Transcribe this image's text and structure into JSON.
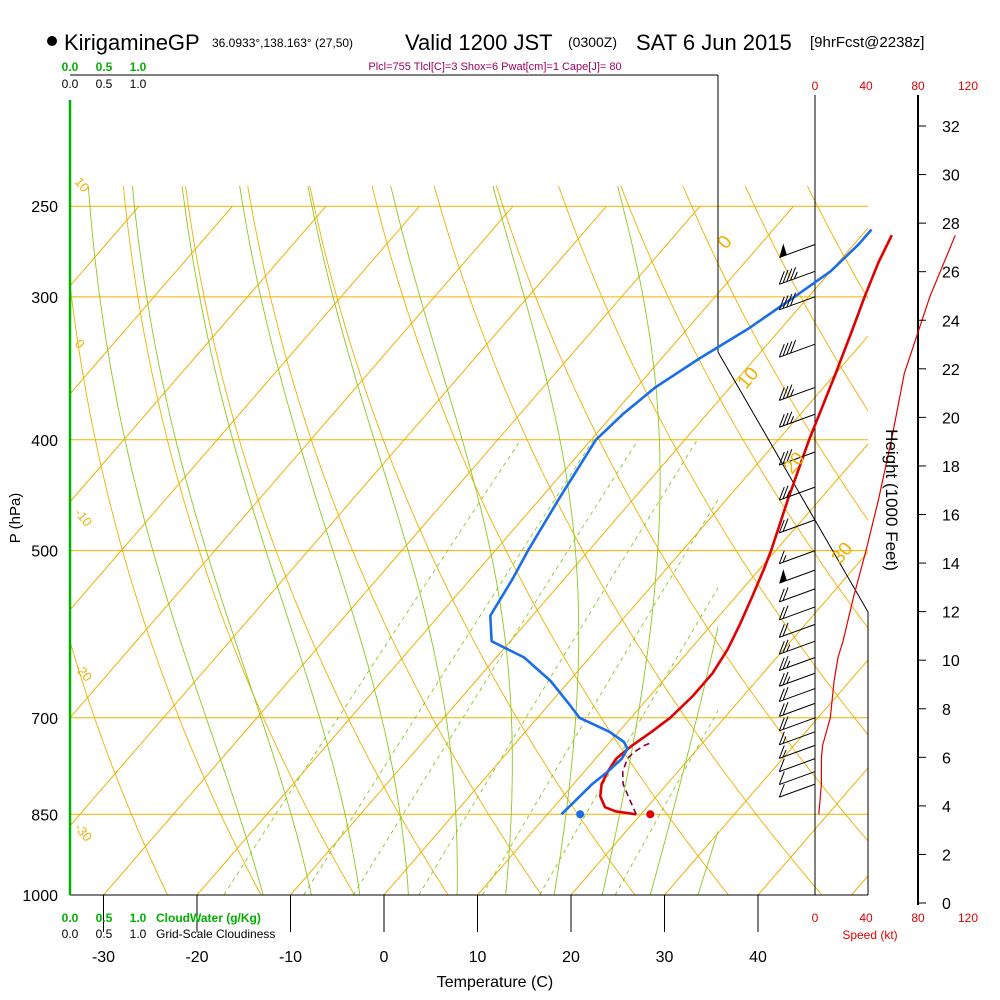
{
  "header": {
    "station": "KirigamineGP",
    "coords": "36.0933°,138.163° (27,50)",
    "valid": "Valid 1200 JST",
    "utc": "(0300Z)",
    "date": "SAT 6 Jun 2015",
    "forecast": "[9hrFcst@2238z]",
    "indices": "Plcl=755 Tlcl[C]=3 Shox=6 Pwat[cm]=1 Cape[J]= 80"
  },
  "colors": {
    "temperature": "#e00000",
    "dewpoint": "#1a6ee8",
    "parcel": "#800040",
    "isobar": "#f0b000",
    "dry_adiabat": "#f0b000",
    "moist_adiabat": "#8cc820",
    "mixing_ratio": "#8cc820",
    "cloud_water": "#00b000",
    "indices": "#a00060",
    "speed": "#e00000"
  },
  "chart_data": {
    "type": "skew-t",
    "xlabel": "Temperature (C)",
    "ylabel": "P (hPa)",
    "y2label": "Height (1000 Feet)",
    "speed_label": "Speed (kt)",
    "temperature_ticks": [
      "-30",
      "-20",
      "-10",
      "0",
      "10",
      "20",
      "30",
      "40"
    ],
    "pressure_ticks": [
      {
        "p": 250,
        "label": "250"
      },
      {
        "p": 300,
        "label": "300"
      },
      {
        "p": 400,
        "label": "400"
      },
      {
        "p": 500,
        "label": "500"
      },
      {
        "p": 700,
        "label": "700"
      },
      {
        "p": 850,
        "label": "850"
      },
      {
        "p": 1000,
        "label": "1000"
      }
    ],
    "isotherm_labels": [
      "10",
      "0",
      "-10",
      "-20",
      "-30"
    ],
    "dry_adiabat_labels": [
      "0",
      "10",
      "20",
      "30"
    ],
    "mixing_ratio_labels": [
      "1",
      "2",
      "3",
      "5",
      "8",
      "12",
      "20"
    ],
    "height_ticks_kft": [
      "0",
      "2",
      "4",
      "6",
      "8",
      "10",
      "12",
      "14",
      "16",
      "18",
      "20",
      "22",
      "24",
      "26",
      "28",
      "30",
      "32"
    ],
    "speed_ticks_kt": [
      "0",
      "40",
      "80",
      "120"
    ],
    "cloud_water_scale": [
      "0.0",
      "0.5",
      "1.0"
    ],
    "cloudiness_scale": [
      "0.0",
      "0.5",
      "1.0"
    ],
    "cloud_water_label": "CloudWater (g/Kg)",
    "cloudiness_label": "Grid-Scale Cloudiness",
    "surface_pressure": 850,
    "temperature_profile": [
      [
        850,
        19.5
      ],
      [
        845,
        17.0
      ],
      [
        838,
        15.5
      ],
      [
        820,
        14.0
      ],
      [
        800,
        13.0
      ],
      [
        780,
        12.5
      ],
      [
        760,
        12.2
      ],
      [
        740,
        12.7
      ],
      [
        720,
        13.5
      ],
      [
        700,
        14.2
      ],
      [
        670,
        14.6
      ],
      [
        640,
        14.6
      ],
      [
        610,
        14.0
      ],
      [
        580,
        13.0
      ],
      [
        550,
        11.8
      ],
      [
        520,
        10.5
      ],
      [
        500,
        9.5
      ],
      [
        450,
        6.5
      ],
      [
        400,
        3.3
      ],
      [
        350,
        0.0
      ],
      [
        320,
        -2.3
      ],
      [
        300,
        -4.0
      ],
      [
        280,
        -5.7
      ],
      [
        265,
        -6.8
      ]
    ],
    "dewpoint_profile": [
      [
        850,
        11.5
      ],
      [
        830,
        11.7
      ],
      [
        800,
        12.0
      ],
      [
        780,
        12.5
      ],
      [
        760,
        12.8
      ],
      [
        745,
        12.5
      ],
      [
        735,
        11.5
      ],
      [
        720,
        9.0
      ],
      [
        700,
        4.5
      ],
      [
        680,
        2.0
      ],
      [
        650,
        -2.0
      ],
      [
        620,
        -7.0
      ],
      [
        600,
        -12.0
      ],
      [
        570,
        -14.5
      ],
      [
        530,
        -15.5
      ],
      [
        500,
        -16.5
      ],
      [
        450,
        -18.0
      ],
      [
        400,
        -19.5
      ],
      [
        380,
        -19.0
      ],
      [
        360,
        -18.0
      ],
      [
        340,
        -16.0
      ],
      [
        320,
        -13.5
      ],
      [
        300,
        -11.5
      ],
      [
        285,
        -10.0
      ],
      [
        270,
        -9.5
      ],
      [
        262,
        -9.5
      ]
    ],
    "parcel_profile": [
      [
        850,
        19.5
      ],
      [
        820,
        17.0
      ],
      [
        800,
        15.3
      ],
      [
        780,
        14.1
      ],
      [
        760,
        13.4
      ],
      [
        750,
        13.5
      ],
      [
        740,
        14.0
      ],
      [
        735,
        14.6
      ]
    ],
    "surface_temperature": 21.0,
    "surface_dewpoint": 13.5,
    "wind_speed_profile": [
      [
        850,
        3
      ],
      [
        800,
        5
      ],
      [
        760,
        5
      ],
      [
        740,
        6
      ],
      [
        700,
        12
      ],
      [
        650,
        15
      ],
      [
        620,
        18
      ],
      [
        600,
        22
      ],
      [
        550,
        30
      ],
      [
        500,
        40
      ],
      [
        450,
        50
      ],
      [
        400,
        60
      ],
      [
        350,
        70
      ],
      [
        300,
        90
      ],
      [
        265,
        110
      ]
    ],
    "wind_barbs": [
      {
        "p": 270,
        "speed": 50
      },
      {
        "p": 285,
        "speed": 45
      },
      {
        "p": 300,
        "speed": 40
      },
      {
        "p": 330,
        "speed": 40
      },
      {
        "p": 360,
        "speed": 35
      },
      {
        "p": 380,
        "speed": 35
      },
      {
        "p": 410,
        "speed": 30
      },
      {
        "p": 440,
        "speed": 25
      },
      {
        "p": 470,
        "speed": 20
      },
      {
        "p": 500,
        "speed": 15
      },
      {
        "p": 520,
        "speed": 50
      },
      {
        "p": 540,
        "speed": 20
      },
      {
        "p": 560,
        "speed": 20
      },
      {
        "p": 580,
        "speed": 20
      },
      {
        "p": 600,
        "speed": 25
      },
      {
        "p": 620,
        "speed": 25
      },
      {
        "p": 640,
        "speed": 25
      },
      {
        "p": 660,
        "speed": 20
      },
      {
        "p": 680,
        "speed": 20
      },
      {
        "p": 700,
        "speed": 20
      },
      {
        "p": 720,
        "speed": 15
      },
      {
        "p": 740,
        "speed": 15
      },
      {
        "p": 760,
        "speed": 10
      },
      {
        "p": 780,
        "speed": 10
      },
      {
        "p": 800,
        "speed": 10
      }
    ]
  }
}
